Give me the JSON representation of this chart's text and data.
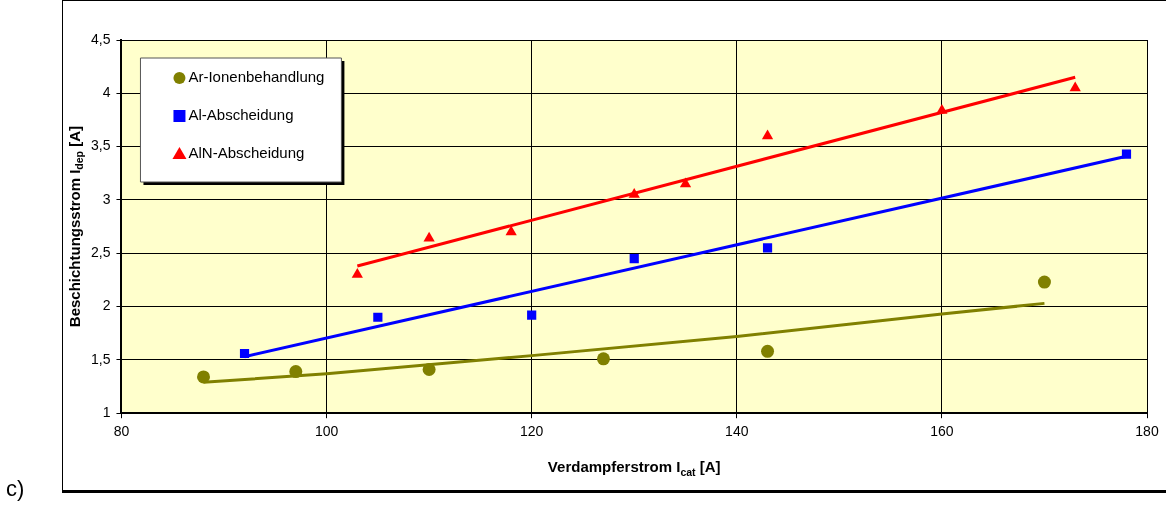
{
  "chart_data": {
    "type": "scatter",
    "xlabel": "Verdampferstrom I$_{cat}$ [A]",
    "ylabel": "Beschichtungsstrom I$_{dep}$ [A]",
    "xlim": [
      80,
      180
    ],
    "xticks": [
      80,
      100,
      120,
      140,
      160,
      180
    ],
    "ylim": [
      1,
      4.5
    ],
    "yticks": [
      1,
      {
        "value": 1.5,
        "label": "1,5"
      },
      2,
      {
        "value": 2.5,
        "label": "2,5"
      },
      3,
      {
        "value": 3.5,
        "label": "3,5"
      },
      4,
      {
        "value": 4.5,
        "label": "4,5"
      }
    ],
    "grid": true,
    "legend": "top left",
    "annotations": [
      "c)"
    ],
    "series": [
      {
        "name": "Ar-Ionenbehandlung",
        "color": "#808000",
        "marker": "circle",
        "x": [
          88,
          97,
          110,
          127,
          143,
          170
        ],
        "values": [
          1.34,
          1.39,
          1.41,
          1.51,
          1.58,
          2.23
        ]
      },
      {
        "name": "Al-Abscheidung",
        "color": "#0000ff",
        "marker": "square",
        "x": [
          92,
          105,
          120,
          130,
          143,
          178
        ],
        "values": [
          1.56,
          1.9,
          1.92,
          2.45,
          2.55,
          3.43
        ]
      },
      {
        "name": "AlN-Abscheidung",
        "color": "#ff0000",
        "marker": "triangle",
        "x": [
          103,
          110,
          118,
          130,
          135,
          143,
          160,
          173
        ],
        "values": [
          2.3,
          2.64,
          2.7,
          3.05,
          3.15,
          3.6,
          3.84,
          4.05
        ]
      },
      {
        "type": "line",
        "color": "#808000",
        "line_style": "solid",
        "x": [
          88,
          100,
          120,
          140,
          160,
          170
        ],
        "values": [
          1.29,
          1.37,
          1.54,
          1.72,
          1.93,
          2.03
        ]
      },
      {
        "type": "line",
        "color": "#0000ff",
        "line_style": "solid",
        "x": [
          92,
          178
        ],
        "values": [
          1.53,
          3.41
        ]
      },
      {
        "type": "line",
        "color": "#ff0000",
        "line_style": "solid",
        "x": [
          103,
          173
        ],
        "values": [
          2.38,
          4.15
        ]
      }
    ]
  }
}
